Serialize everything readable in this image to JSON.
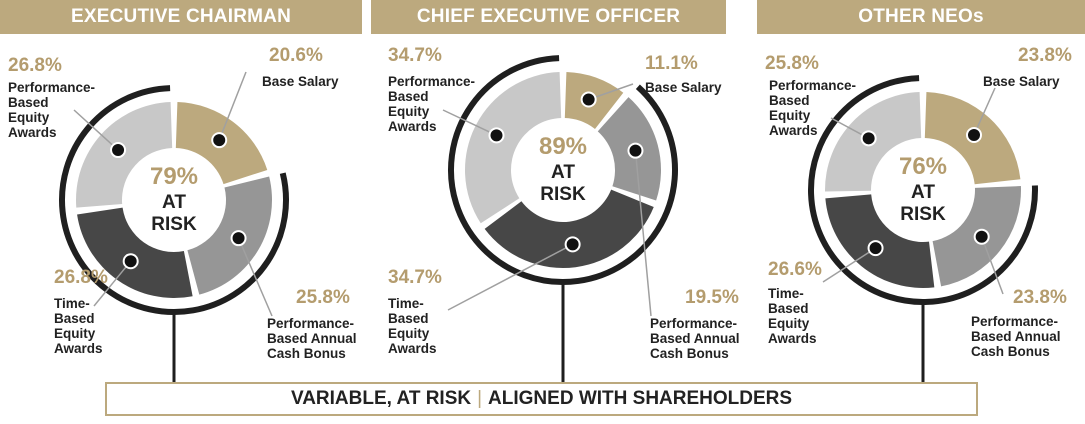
{
  "colors": {
    "gold": "#bca97e",
    "gold_text": "#b49c6e",
    "seg_base": "#bca97e",
    "seg_bonus": "#969696",
    "seg_time": "#474747",
    "seg_perf": "#c8c8c8",
    "arc": "#1f1f1f"
  },
  "footer": {
    "left": "VARIABLE, AT RISK",
    "separator": "|",
    "right": "ALIGNED WITH SHAREHOLDERS"
  },
  "chart_data": [
    {
      "type": "pie",
      "title": "EXECUTIVE CHAIRMAN",
      "center_value": "79%",
      "center_label": [
        "AT",
        "RISK"
      ],
      "at_risk_percent": 79,
      "categories": [
        "Base Salary",
        "Performance-Based Annual Cash Bonus",
        "Time-Based Equity Awards",
        "Performance-Based Equity Awards"
      ],
      "values": [
        20.6,
        25.8,
        26.8,
        26.8
      ],
      "value_labels": [
        "20.6%",
        "25.8%",
        "26.8%",
        "26.8%"
      ],
      "label_lines": [
        [
          "Base Salary"
        ],
        [
          "Performance-",
          "Based Annual",
          "Cash Bonus"
        ],
        [
          "Time-",
          "Based",
          "Equity",
          "Awards"
        ],
        [
          "Performance-",
          "Based",
          "Equity",
          "Awards"
        ]
      ]
    },
    {
      "type": "pie",
      "title": "CHIEF EXECUTIVE OFFICER",
      "center_value": "89%",
      "center_label": [
        "AT",
        "RISK"
      ],
      "at_risk_percent": 89,
      "categories": [
        "Base Salary",
        "Performance-Based Annual Cash Bonus",
        "Time-Based Equity Awards",
        "Performance-Based Equity Awards"
      ],
      "values": [
        11.1,
        19.5,
        34.7,
        34.7
      ],
      "value_labels": [
        "11.1%",
        "19.5%",
        "34.7%",
        "34.7%"
      ],
      "label_lines": [
        [
          "Base Salary"
        ],
        [
          "Performance-",
          "Based Annual",
          "Cash Bonus"
        ],
        [
          "Time-",
          "Based",
          "Equity",
          "Awards"
        ],
        [
          "Performance-",
          "Based",
          "Equity",
          "Awards"
        ]
      ]
    },
    {
      "type": "pie",
      "title": "OTHER NEOs",
      "center_value": "76%",
      "center_label": [
        "AT",
        "RISK"
      ],
      "at_risk_percent": 76,
      "categories": [
        "Base Salary",
        "Performance-Based Annual Cash Bonus",
        "Time-Based Equity Awards",
        "Performance-Based Equity Awards"
      ],
      "values": [
        23.8,
        23.8,
        26.6,
        25.8
      ],
      "value_labels": [
        "23.8%",
        "23.8%",
        "26.6%",
        "25.8%"
      ],
      "label_lines": [
        [
          "Base Salary"
        ],
        [
          "Performance-",
          "Based Annual",
          "Cash Bonus"
        ],
        [
          "Time-",
          "Based",
          "Equity",
          "Awards"
        ],
        [
          "Performance-",
          "Based",
          "Equity",
          "Awards"
        ]
      ]
    }
  ]
}
